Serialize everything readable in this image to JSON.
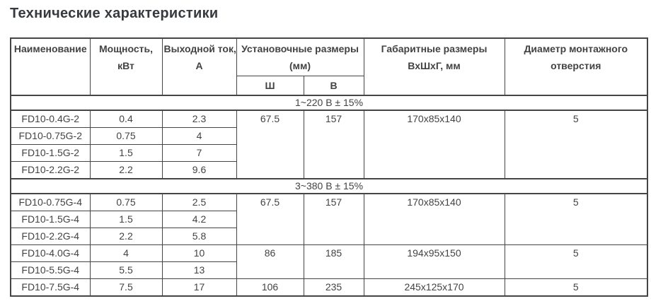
{
  "page": {
    "title": "Технические характеристики"
  },
  "colors": {
    "title_text": "#363a3e",
    "cell_text": "#434343",
    "table_border": "#454545",
    "background": "#ffffff"
  },
  "table": {
    "headers": {
      "name": "Наименование",
      "power_line1": "Мощность,",
      "power_line2": "кВт",
      "current_line1": "Выходной ток,",
      "current_line2": "А",
      "mounting_line1": "Установочные размеры",
      "mounting_line2": "(мм)",
      "mounting_width": "Ш",
      "mounting_height": "В",
      "overall_line1": "Габаритные размеры",
      "overall_line2": "ВхШхГ, мм",
      "hole_line1": "Диаметр монтажного",
      "hole_line2": "отверстия"
    },
    "sections": [
      {
        "label": "1~220 В ± 15%",
        "rows": [
          {
            "name": "FD10-0.4G-2",
            "power": "0.4",
            "current": "2.3",
            "width": "67.5",
            "height": "157",
            "dims": "170x85x140",
            "hole": "5"
          },
          {
            "name": "FD10-0.75G-2",
            "power": "0.75",
            "current": "4"
          },
          {
            "name": "FD10-1.5G-2",
            "power": "1.5",
            "current": "7"
          },
          {
            "name": "FD10-2.2G-2",
            "power": "2.2",
            "current": "9.6"
          }
        ]
      },
      {
        "label": "3~380 В ± 15%",
        "rows": [
          {
            "name": "FD10-0.75G-4",
            "power": "0.75",
            "current": "2.5",
            "width": "67.5",
            "height": "157",
            "dims": "170x85x140",
            "hole": "5"
          },
          {
            "name": "FD10-1.5G-4",
            "power": "1.5",
            "current": "4.2"
          },
          {
            "name": "FD10-2.2G-4",
            "power": "2.2",
            "current": "5.8"
          },
          {
            "name": "FD10-4.0G-4",
            "power": "4",
            "current": "10",
            "width": "86",
            "height": "185",
            "dims": "194x95x150",
            "hole": "5"
          },
          {
            "name": "FD10-5.5G-4",
            "power": "5.5",
            "current": "13"
          },
          {
            "name": "FD10-7.5G-4",
            "power": "7.5",
            "current": "17",
            "width": "106",
            "height": "235",
            "dims": "245x125x170",
            "hole": "5"
          }
        ]
      }
    ]
  }
}
